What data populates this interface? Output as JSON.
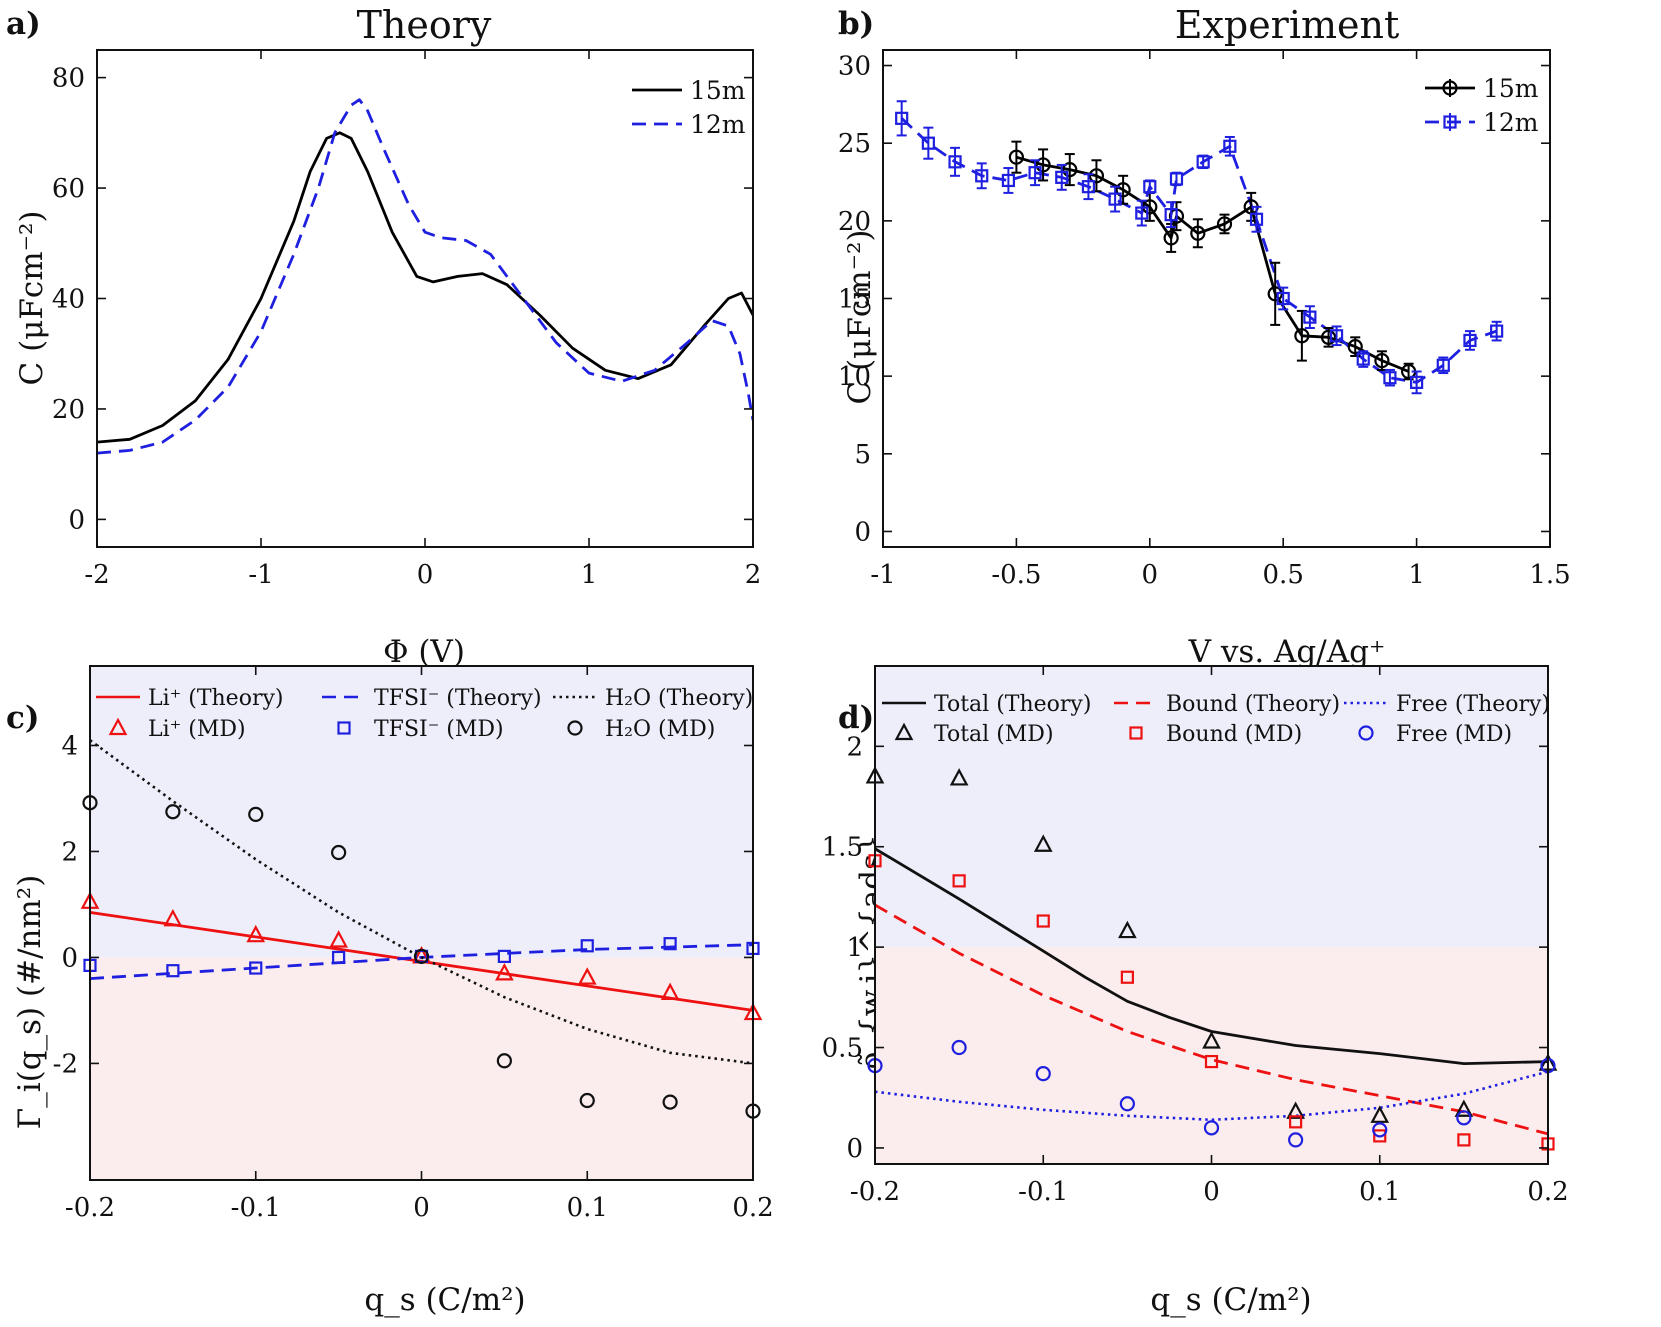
{
  "chart_data": [
    {
      "panel_label": "a)",
      "type": "line",
      "title": "Theory",
      "xlabel": "Φ (V)",
      "ylabel": "C (μFcm⁻²)",
      "xlim": [
        -2,
        2
      ],
      "ylim": [
        -5,
        85
      ],
      "xticks": [
        "-2",
        "-1",
        "0",
        "1",
        "2"
      ],
      "yticks": [
        "0",
        "20",
        "40",
        "60",
        "80"
      ],
      "series": [
        {
          "name": "15m",
          "color": "#000000",
          "style": "solid",
          "x": [
            -2,
            -1.8,
            -1.6,
            -1.4,
            -1.2,
            -1.0,
            -0.8,
            -0.7,
            -0.6,
            -0.52,
            -0.45,
            -0.35,
            -0.2,
            -0.05,
            0.05,
            0.2,
            0.35,
            0.5,
            0.7,
            0.9,
            1.1,
            1.3,
            1.5,
            1.7,
            1.85,
            1.93,
            2.0
          ],
          "y": [
            14,
            14.5,
            17,
            21.5,
            29,
            40,
            54,
            63,
            69,
            70,
            69,
            63,
            52,
            44,
            43,
            44,
            44.5,
            42.5,
            37,
            31,
            27,
            25.5,
            28,
            35,
            40,
            41,
            37
          ]
        },
        {
          "name": "12m",
          "color": "#1f1fe0",
          "style": "dashed",
          "x": [
            -2,
            -1.8,
            -1.6,
            -1.4,
            -1.2,
            -1.0,
            -0.8,
            -0.65,
            -0.55,
            -0.45,
            -0.4,
            -0.35,
            -0.25,
            -0.1,
            0.0,
            0.1,
            0.25,
            0.4,
            0.6,
            0.8,
            1.0,
            1.2,
            1.4,
            1.6,
            1.75,
            1.85,
            1.92,
            1.97,
            2.0
          ],
          "y": [
            12,
            12.5,
            14,
            18,
            24,
            34,
            48,
            60,
            70,
            75,
            76,
            74,
            67,
            57,
            52,
            51,
            50.5,
            48,
            40,
            32,
            26.5,
            25,
            27,
            32,
            36,
            35,
            30,
            23,
            18
          ]
        }
      ]
    },
    {
      "panel_label": "b)",
      "type": "line",
      "title": "Experiment",
      "xlabel": "V vs. Ag/Ag⁺",
      "ylabel": "C (μFcm⁻²)",
      "xlim": [
        -1,
        1.5
      ],
      "ylim": [
        -1,
        31
      ],
      "xticks": [
        "-1",
        "-0.5",
        "0",
        "0.5",
        "1",
        "1.5"
      ],
      "yticks": [
        "0",
        "5",
        "10",
        "15",
        "20",
        "25",
        "30"
      ],
      "series": [
        {
          "name": "15m",
          "color": "#000000",
          "marker": "circle",
          "style": "solid",
          "x": [
            -0.5,
            -0.4,
            -0.3,
            -0.2,
            -0.1,
            0.0,
            0.08,
            0.1,
            0.18,
            0.28,
            0.38,
            0.47,
            0.57,
            0.67,
            0.77,
            0.87,
            0.97
          ],
          "y": [
            24.1,
            23.6,
            23.3,
            22.9,
            22.0,
            20.9,
            18.9,
            20.3,
            19.2,
            19.8,
            20.9,
            15.3,
            12.6,
            12.5,
            11.9,
            11.0,
            10.3
          ],
          "err": [
            1.0,
            1.0,
            1.0,
            1.0,
            0.9,
            0.9,
            0.9,
            0.9,
            0.9,
            0.6,
            0.9,
            2.0,
            1.6,
            0.6,
            0.6,
            0.6,
            0.5
          ]
        },
        {
          "name": "12m",
          "color": "#1f1fe0",
          "marker": "square",
          "style": "dashed",
          "x": [
            -0.93,
            -0.83,
            -0.73,
            -0.63,
            -0.53,
            -0.43,
            -0.33,
            -0.23,
            -0.13,
            -0.03,
            0.0,
            0.08,
            0.1,
            0.2,
            0.3,
            0.4,
            0.5,
            0.6,
            0.7,
            0.8,
            0.9,
            1.0,
            1.1,
            1.2,
            1.3
          ],
          "y": [
            26.6,
            25.0,
            23.8,
            22.9,
            22.6,
            23.1,
            22.8,
            22.2,
            21.4,
            20.5,
            22.2,
            20.4,
            22.7,
            23.8,
            24.8,
            20.1,
            15.0,
            13.8,
            12.6,
            11.1,
            9.9,
            9.6,
            10.7,
            12.3,
            12.9
          ],
          "err": [
            1.1,
            1.0,
            0.9,
            0.8,
            0.8,
            0.8,
            0.8,
            0.8,
            0.8,
            0.8,
            0.4,
            0.8,
            0.4,
            0.4,
            0.6,
            0.8,
            0.7,
            0.7,
            0.6,
            0.5,
            0.5,
            0.7,
            0.5,
            0.6,
            0.6
          ]
        }
      ]
    },
    {
      "panel_label": "c)",
      "type": "line",
      "title": "",
      "xlabel": "q_s (C/m²)",
      "ylabel": "Γ_i(q_s) (#/nm²)",
      "xlim": [
        -0.2,
        0.2
      ],
      "ylim": [
        -4.2,
        5.5
      ],
      "xticks": [
        "-0.2",
        "-0.1",
        "0",
        "0.1",
        "0.2"
      ],
      "yticks": [
        "-2",
        "0",
        "2",
        "4"
      ],
      "shading": {
        "positive_region": "#eeeefb",
        "negative_region": "#fbeded"
      },
      "series": [
        {
          "name": "Li⁺ (Theory)",
          "color": "#ee1111",
          "style": "solid",
          "x": [
            -0.2,
            0.2
          ],
          "y": [
            0.85,
            -1.0
          ]
        },
        {
          "name": "TFSI⁻ (Theory)",
          "color": "#1f1fe0",
          "style": "dashed",
          "x": [
            -0.2,
            -0.1,
            0.0,
            0.1,
            0.2
          ],
          "y": [
            -0.4,
            -0.2,
            0.0,
            0.15,
            0.24
          ]
        },
        {
          "name": "H₂O (Theory)",
          "color": "#111111",
          "style": "dotted",
          "x": [
            -0.2,
            -0.15,
            -0.1,
            -0.05,
            0.0,
            0.05,
            0.1,
            0.15,
            0.2
          ],
          "y": [
            4.1,
            2.95,
            1.85,
            0.85,
            0.0,
            -0.75,
            -1.35,
            -1.8,
            -2.0
          ]
        },
        {
          "name": "Li⁺ (MD)",
          "color": "#ee1111",
          "marker": "triangle",
          "x": [
            -0.2,
            -0.15,
            -0.1,
            -0.05,
            0.0,
            0.05,
            0.1,
            0.15,
            0.2
          ],
          "y": [
            1.05,
            0.72,
            0.42,
            0.32,
            0.02,
            -0.3,
            -0.38,
            -0.67,
            -1.05
          ]
        },
        {
          "name": "TFSI⁻ (MD)",
          "color": "#1f1fe0",
          "marker": "square",
          "x": [
            -0.2,
            -0.15,
            -0.1,
            -0.05,
            0.0,
            0.05,
            0.1,
            0.15,
            0.2
          ],
          "y": [
            -0.15,
            -0.25,
            -0.2,
            0.0,
            0.02,
            0.02,
            0.22,
            0.26,
            0.17
          ]
        },
        {
          "name": "H₂O (MD)",
          "color": "#111111",
          "marker": "circle",
          "x": [
            -0.2,
            -0.15,
            -0.1,
            -0.05,
            0.0,
            0.05,
            0.1,
            0.15,
            0.2
          ],
          "y": [
            2.92,
            2.75,
            2.7,
            1.98,
            0.02,
            -1.95,
            -2.7,
            -2.73,
            -2.9
          ]
        }
      ]
    },
    {
      "panel_label": "d)",
      "type": "line",
      "title": "",
      "xlabel": "q_s (C/m²)",
      "ylabel": "ρ̃_{w,i}^{ads}",
      "xlim": [
        -0.2,
        0.2
      ],
      "ylim": [
        -0.08,
        2.4
      ],
      "xticks": [
        "-0.2",
        "-0.1",
        "0",
        "0.1",
        "0.2"
      ],
      "yticks": [
        "0",
        "0.5",
        "1",
        "1.5",
        "2"
      ],
      "shading": {
        "positive_region": "#eeeefb",
        "negative_region": "#fbeded",
        "boundary": 1
      },
      "series": [
        {
          "name": "Total (Theory)",
          "color": "#111111",
          "style": "solid",
          "x": [
            -0.2,
            -0.15,
            -0.1,
            -0.075,
            -0.05,
            -0.025,
            0.0,
            0.05,
            0.1,
            0.15,
            0.2
          ],
          "y": [
            1.49,
            1.24,
            0.98,
            0.85,
            0.73,
            0.65,
            0.58,
            0.51,
            0.47,
            0.42,
            0.43
          ]
        },
        {
          "name": "Bound (Theory)",
          "color": "#ee1111",
          "style": "dashed",
          "x": [
            -0.2,
            -0.15,
            -0.1,
            -0.05,
            0.0,
            0.05,
            0.1,
            0.15,
            0.2
          ],
          "y": [
            1.21,
            0.97,
            0.76,
            0.58,
            0.44,
            0.34,
            0.26,
            0.18,
            0.07
          ]
        },
        {
          "name": "Free (Theory)",
          "color": "#1f1fe0",
          "style": "dotted",
          "x": [
            -0.2,
            -0.15,
            -0.1,
            -0.05,
            0.0,
            0.05,
            0.1,
            0.15,
            0.2
          ],
          "y": [
            0.28,
            0.23,
            0.19,
            0.16,
            0.14,
            0.16,
            0.2,
            0.27,
            0.38
          ]
        },
        {
          "name": "Total (MD)",
          "color": "#111111",
          "marker": "triangle",
          "x": [
            -0.2,
            -0.15,
            -0.1,
            -0.05,
            0.0,
            0.05,
            0.1,
            0.15,
            0.2
          ],
          "y": [
            1.85,
            1.84,
            1.51,
            1.08,
            0.53,
            0.18,
            0.16,
            0.19,
            0.42
          ]
        },
        {
          "name": "Bound (MD)",
          "color": "#ee1111",
          "marker": "square",
          "x": [
            -0.2,
            -0.15,
            -0.1,
            -0.05,
            0.0,
            0.05,
            0.1,
            0.15,
            0.2
          ],
          "y": [
            1.43,
            1.33,
            1.13,
            0.85,
            0.43,
            0.13,
            0.06,
            0.04,
            0.02
          ]
        },
        {
          "name": "Free (MD)",
          "color": "#1f1fe0",
          "marker": "circle",
          "x": [
            -0.2,
            -0.15,
            -0.1,
            -0.05,
            0.0,
            0.05,
            0.1,
            0.15,
            0.2
          ],
          "y": [
            0.41,
            0.5,
            0.37,
            0.22,
            0.1,
            0.04,
            0.09,
            0.15,
            0.41
          ]
        }
      ]
    }
  ]
}
